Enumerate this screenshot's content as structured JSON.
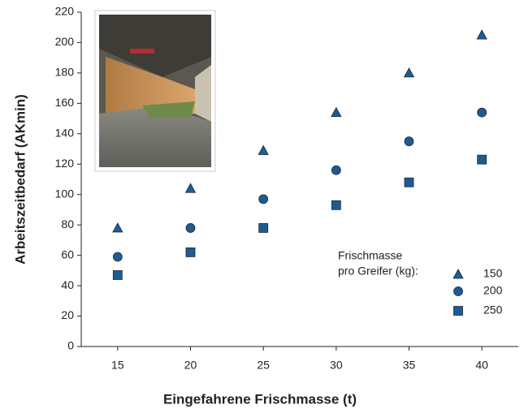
{
  "chart_data": {
    "type": "scatter",
    "x_label": "Eingefahrene Frischmasse (t)",
    "y_label": "Arbeitszeitbedarf (AKmin)",
    "x": [
      15,
      20,
      25,
      30,
      35,
      40
    ],
    "series": [
      {
        "name": "150",
        "color": "#1f5b92",
        "marker": "triangle",
        "values": [
          78,
          104,
          129,
          154,
          180,
          205
        ]
      },
      {
        "name": "200",
        "color": "#1f5b92",
        "marker": "circle",
        "values": [
          59,
          78,
          97,
          116,
          135,
          154
        ]
      },
      {
        "name": "250",
        "color": "#1f5b92",
        "marker": "square",
        "values": [
          47,
          62,
          78,
          93,
          108,
          123
        ]
      }
    ],
    "legend_title": [
      "Frischmasse",
      "pro Greifer (kg):"
    ],
    "xlim": [
      12.5,
      42.5
    ],
    "xticks": [
      15,
      20,
      25,
      30,
      35,
      40
    ],
    "ylim": [
      0,
      220
    ],
    "yticks": [
      0,
      20,
      40,
      60,
      80,
      100,
      120,
      140,
      160,
      180,
      200,
      220
    ],
    "grid": false
  }
}
